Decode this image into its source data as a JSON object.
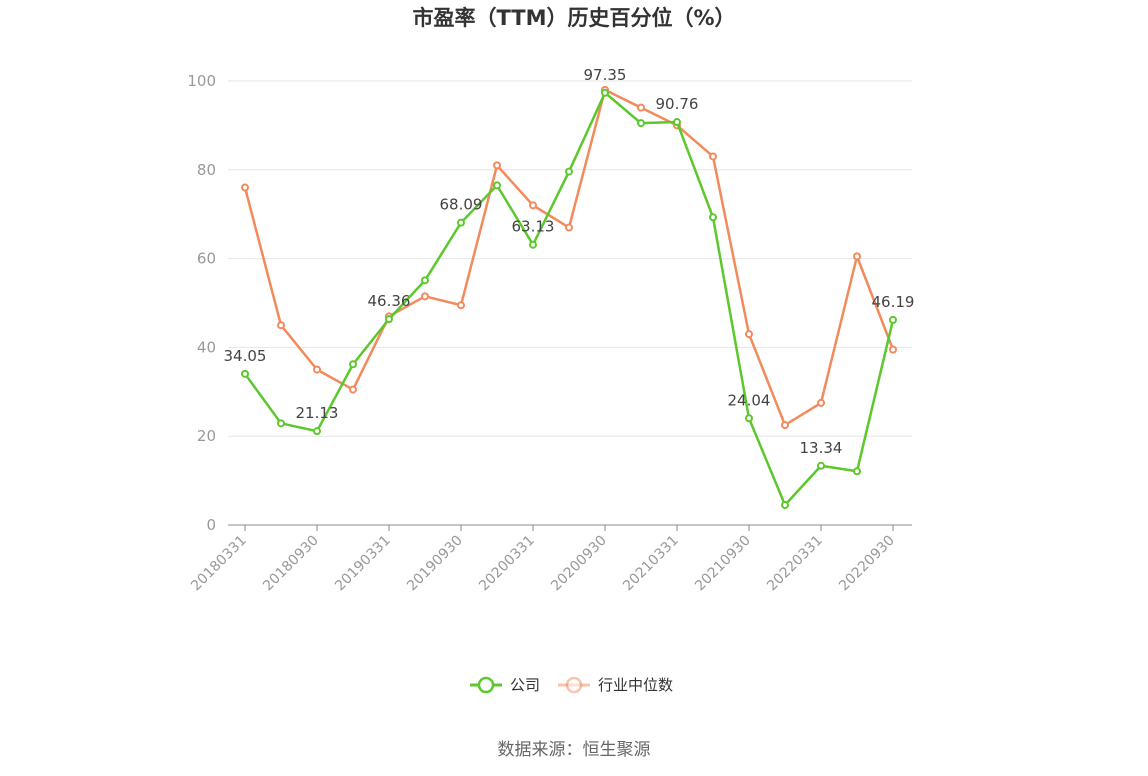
{
  "chart_data": {
    "type": "line",
    "title": "市盈率（TTM）历史百分位（%）",
    "x": [
      "20180331",
      "20180630",
      "20180930",
      "20181231",
      "20190331",
      "20190630",
      "20190930",
      "20191231",
      "20200331",
      "20200630",
      "20200930",
      "20201231",
      "20210331",
      "20210630",
      "20210930",
      "20211231",
      "20220331",
      "20220630",
      "20220930"
    ],
    "x_tick_labels": [
      "20180331",
      "20180930",
      "20190331",
      "20190930",
      "20200331",
      "20200930",
      "20210331",
      "20210930",
      "20220331",
      "20220930"
    ],
    "ylim": [
      0,
      100
    ],
    "y_ticks": [
      0,
      20,
      40,
      60,
      80,
      100
    ],
    "grid": true,
    "legend_position": "bottom-center",
    "series": [
      {
        "name": "公司",
        "color": "#5cc82b",
        "values": [
          34.05,
          22.9,
          21.13,
          36.2,
          46.36,
          55.1,
          68.09,
          76.5,
          63.13,
          79.6,
          97.35,
          90.5,
          90.76,
          69.3,
          24.04,
          4.5,
          13.34,
          12.1,
          46.19
        ],
        "labeled": [
          true,
          false,
          true,
          false,
          true,
          false,
          true,
          false,
          true,
          false,
          true,
          false,
          true,
          false,
          true,
          false,
          true,
          false,
          true
        ]
      },
      {
        "name": "行业中位数",
        "color": "#f28a5b",
        "values": [
          76.0,
          45.0,
          35.0,
          30.5,
          47.0,
          51.5,
          49.5,
          81.0,
          72.0,
          67.0,
          98.0,
          94.0,
          90.0,
          83.0,
          43.0,
          22.5,
          27.5,
          60.5,
          39.5
        ]
      }
    ]
  },
  "source_text": "数据来源：恒生聚源"
}
